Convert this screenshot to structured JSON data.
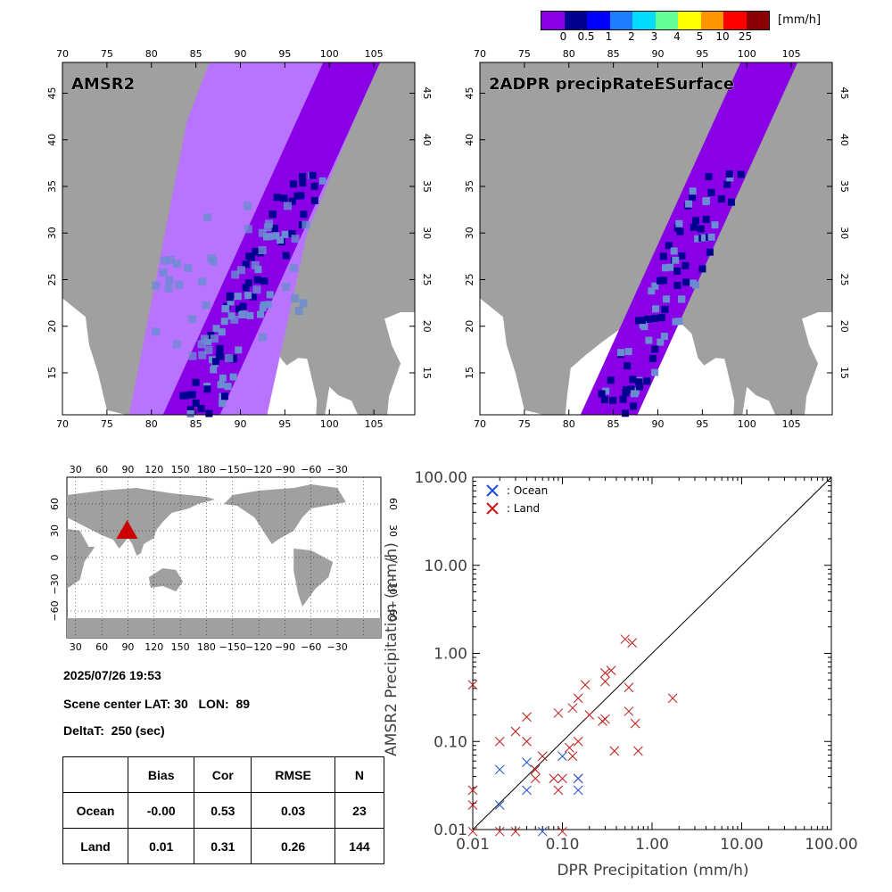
{
  "colorbar": {
    "unit": "[mm/h]",
    "colors": [
      "#8a00e6",
      "#000090",
      "#0000ff",
      "#1e7dff",
      "#00dcff",
      "#64ff96",
      "#ffff00",
      "#ff9600",
      "#ff0000",
      "#8b0000"
    ],
    "labels": [
      "0",
      "0.5",
      "1",
      "2",
      "3",
      "4",
      "5",
      "10",
      "25"
    ]
  },
  "maps": {
    "left_title": "AMSR2",
    "right_title": "2ADPR precipRateESurface",
    "lon_ticks": [
      "70",
      "75",
      "80",
      "85",
      "90",
      "95",
      "100",
      "105"
    ],
    "lat_ticks": [
      "15",
      "20",
      "25",
      "30",
      "35",
      "40",
      "45"
    ],
    "colors": {
      "land": "#a0a0a0",
      "ocean": "#ffffff",
      "amsr2_swath": "#b873ff",
      "dpr_swath": "#8a00e6",
      "rain_light": "#6a8cd2",
      "rain_dark": "#000090"
    }
  },
  "globe": {
    "lon_ticks": [
      "30",
      "60",
      "90",
      "120",
      "150",
      "180",
      "−150",
      "−120",
      "−90",
      "−60",
      "−30"
    ],
    "lat_ticks": [
      "60",
      "30",
      "0",
      "−30",
      "−60"
    ],
    "marker_color": "#cc0000"
  },
  "info": {
    "datetime": "2025/07/26 19:53",
    "scene_center": "Scene center LAT: 30   LON:  89",
    "delta_t": "DeltaT:  250 (sec)"
  },
  "stats_table": {
    "headers": [
      "",
      "Bias",
      "Cor",
      "RMSE",
      "N"
    ],
    "rows": [
      [
        "Ocean",
        "-0.00",
        "0.53",
        "0.03",
        "23"
      ],
      [
        "Land",
        "0.01",
        "0.31",
        "0.26",
        "144"
      ]
    ]
  },
  "chart_data": {
    "type": "scatter",
    "xlabel": "DPR Precipitation (mm/h)",
    "ylabel": "AMSR2 Precipitation (mm/h)",
    "x_scale": "log",
    "y_scale": "log",
    "xlim": [
      0.01,
      100
    ],
    "ylim": [
      0.01,
      100
    ],
    "tick_labels": [
      "0.01",
      "0.10",
      "1.00",
      "10.00",
      "100.00"
    ],
    "legend_position": "top-left",
    "series": [
      {
        "name": ": Ocean",
        "color": "#1e50d2",
        "points": [
          [
            0.02,
            0.048
          ],
          [
            0.02,
            0.019
          ],
          [
            0.04,
            0.058
          ],
          [
            0.04,
            0.028
          ],
          [
            0.06,
            0.0095
          ],
          [
            0.1,
            0.068
          ],
          [
            0.15,
            0.038
          ],
          [
            0.15,
            0.028
          ]
        ]
      },
      {
        "name": ": Land",
        "color": "#c01818",
        "points": [
          [
            0.01,
            0.44
          ],
          [
            0.01,
            0.028
          ],
          [
            0.01,
            0.019
          ],
          [
            0.01,
            0.0095
          ],
          [
            0.02,
            0.1
          ],
          [
            0.02,
            0.0095
          ],
          [
            0.03,
            0.13
          ],
          [
            0.03,
            0.0095
          ],
          [
            0.04,
            0.19
          ],
          [
            0.04,
            0.1
          ],
          [
            0.05,
            0.048
          ],
          [
            0.05,
            0.038
          ],
          [
            0.06,
            0.068
          ],
          [
            0.08,
            0.038
          ],
          [
            0.09,
            0.21
          ],
          [
            0.09,
            0.028
          ],
          [
            0.1,
            0.038
          ],
          [
            0.1,
            0.0095
          ],
          [
            0.12,
            0.085
          ],
          [
            0.13,
            0.24
          ],
          [
            0.13,
            0.068
          ],
          [
            0.15,
            0.31
          ],
          [
            0.15,
            0.1
          ],
          [
            0.15,
            0.038
          ],
          [
            0.18,
            0.44
          ],
          [
            0.2,
            0.2
          ],
          [
            0.28,
            0.17
          ],
          [
            0.3,
            0.6
          ],
          [
            0.3,
            0.48
          ],
          [
            0.3,
            0.18
          ],
          [
            0.35,
            0.64
          ],
          [
            0.38,
            0.078
          ],
          [
            0.5,
            1.45
          ],
          [
            0.55,
            0.41
          ],
          [
            0.55,
            0.22
          ],
          [
            0.6,
            1.32
          ],
          [
            0.65,
            0.16
          ],
          [
            0.7,
            0.078
          ],
          [
            1.7,
            0.31
          ]
        ]
      }
    ]
  }
}
